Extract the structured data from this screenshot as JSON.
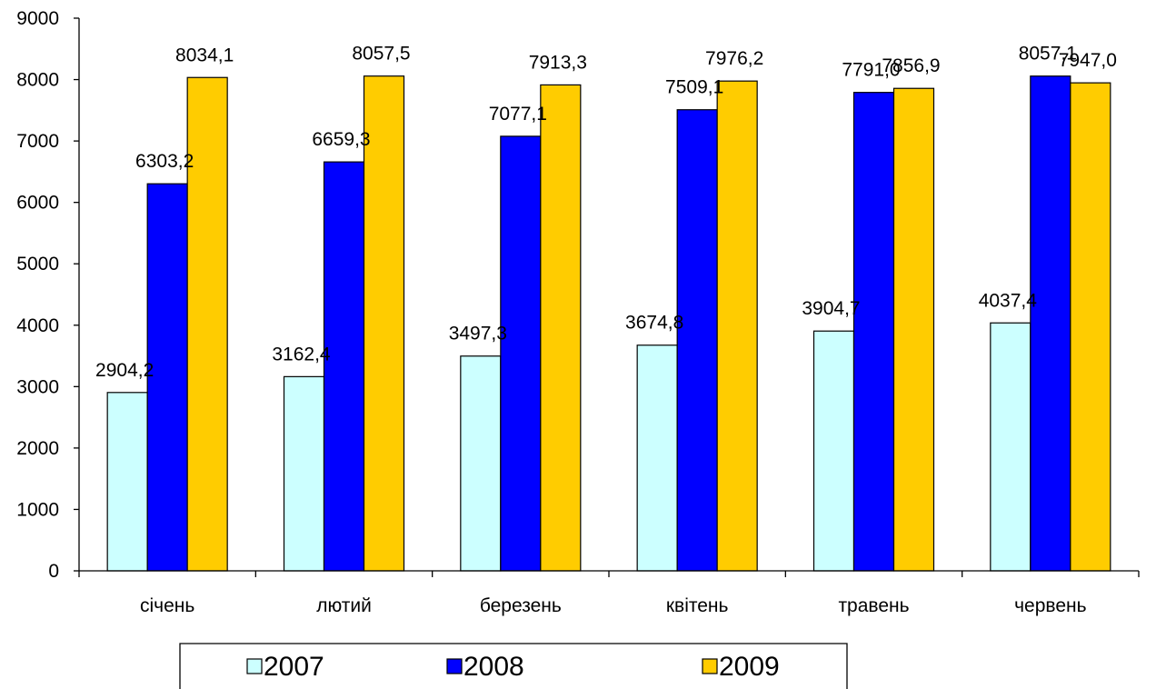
{
  "chart_data": {
    "type": "bar",
    "categories": [
      "січень",
      "лютий",
      "березень",
      "квітень",
      "травень",
      "червень"
    ],
    "series": [
      {
        "name": "2007",
        "color": "#ccffff",
        "values": [
          2904.2,
          3162.4,
          3497.3,
          3674.8,
          3904.7,
          4037.4
        ],
        "labels": [
          "2904,2",
          "3162,4",
          "3497,3",
          "3674,8",
          "3904,7",
          "4037,4"
        ]
      },
      {
        "name": "2008",
        "color": "#0000ff",
        "values": [
          6303.2,
          6659.3,
          7077.1,
          7509.1,
          7791.0,
          8057.1
        ],
        "labels": [
          "6303,2",
          "6659,3",
          "7077,1",
          "7509,1",
          "7791,0",
          "8057,1"
        ]
      },
      {
        "name": "2009",
        "color": "#ffcc00",
        "values": [
          8034.1,
          8057.5,
          7913.3,
          7976.2,
          7856.9,
          7947.0
        ],
        "labels": [
          "8034,1",
          "8057,5",
          "7913,3",
          "7976,2",
          "7856,9",
          "7947,0"
        ]
      }
    ],
    "ylim": [
      0,
      9000
    ],
    "yticks": [
      "0",
      "1000",
      "2000",
      "3000",
      "4000",
      "5000",
      "6000",
      "7000",
      "8000",
      "9000"
    ],
    "grid": false,
    "legend_position": "bottom"
  }
}
